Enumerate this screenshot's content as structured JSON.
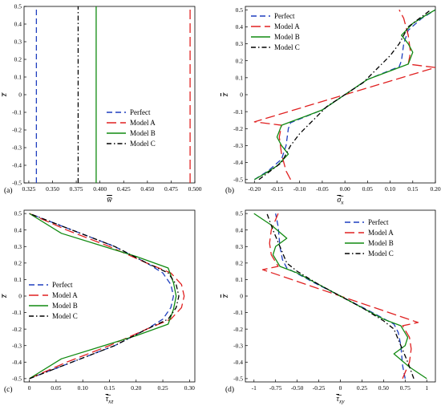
{
  "colors": {
    "Perfect": "#1f3fbf",
    "Model A": "#e02020",
    "Model B": "#108a10",
    "Model C": "#000000"
  },
  "chart_data": [
    {
      "panel": "(a)",
      "type": "line",
      "xlabel": "w̅",
      "ylabel": "z̅",
      "xlim": [
        0.32,
        0.5
      ],
      "ylim": [
        -0.5,
        0.5
      ],
      "xticks": [
        "0.325",
        "0.350",
        "0.375",
        "0.400",
        "0.425",
        "0.450",
        "0.475",
        "0.500"
      ],
      "xtick_values": [
        0.325,
        0.35,
        0.375,
        0.4,
        0.425,
        0.45,
        0.475,
        0.5
      ],
      "yticks": [
        "-0.5",
        "-0.4",
        "-0.3",
        "-0.2",
        "-0.1",
        "0",
        "0.1",
        "0.2",
        "0.3",
        "0.4",
        "0.5"
      ],
      "ytick_values": [
        -0.5,
        -0.4,
        -0.3,
        -0.2,
        -0.1,
        0,
        0.1,
        0.2,
        0.3,
        0.4,
        0.5
      ],
      "legend": "lower-right",
      "series": [
        {
          "name": "Perfect",
          "x": [
            0.333,
            0.333
          ],
          "y": [
            -0.5,
            0.5
          ]
        },
        {
          "name": "Model A",
          "x": [
            0.495,
            0.495
          ],
          "y": [
            -0.5,
            0.5
          ]
        },
        {
          "name": "Model B",
          "x": [
            0.396,
            0.396
          ],
          "y": [
            -0.5,
            0.5
          ]
        },
        {
          "name": "Model C",
          "x": [
            0.377,
            0.377
          ],
          "y": [
            -0.5,
            0.5
          ]
        }
      ]
    },
    {
      "panel": "(b)",
      "type": "line",
      "xlabel": "σ̅x",
      "ylabel": "z̅",
      "xlim": [
        -0.22,
        0.2
      ],
      "ylim": [
        -0.52,
        0.52
      ],
      "xticks": [
        "-0.20",
        "-0.15",
        "-0.10",
        "-0.05",
        "0.00",
        "0.05",
        "0.10",
        "0.15",
        "0.20"
      ],
      "xtick_values": [
        -0.2,
        -0.15,
        -0.1,
        -0.05,
        0,
        0.05,
        0.1,
        0.15,
        0.2
      ],
      "yticks": [
        "-0.5",
        "-0.4",
        "-0.3",
        "-0.2",
        "-0.1",
        "0",
        "0.1",
        "0.2",
        "0.3",
        "0.4",
        "0.5"
      ],
      "ytick_values": [
        -0.5,
        -0.4,
        -0.3,
        -0.2,
        -0.1,
        0,
        0.1,
        0.2,
        0.3,
        0.4,
        0.5
      ],
      "legend": "top-left",
      "series": [
        {
          "name": "Perfect",
          "x": [
            -0.2,
            -0.17,
            -0.14,
            -0.13,
            -0.125,
            -0.12,
            -0.05,
            0,
            0.05,
            0.12,
            0.125,
            0.13,
            0.14,
            0.17,
            0.2
          ],
          "y": [
            -0.5,
            -0.45,
            -0.38,
            -0.3,
            -0.2,
            -0.165,
            -0.09,
            0,
            0.09,
            0.165,
            0.2,
            0.3,
            0.38,
            0.45,
            0.5
          ]
        },
        {
          "name": "Model A",
          "x": [
            -0.12,
            -0.13,
            -0.14,
            -0.145,
            -0.14,
            -0.2,
            0,
            0.2,
            0.14,
            0.145,
            0.14,
            0.13,
            0.12
          ],
          "y": [
            -0.5,
            -0.45,
            -0.35,
            -0.25,
            -0.18,
            -0.16,
            0,
            0.16,
            0.18,
            0.25,
            0.35,
            0.45,
            0.5
          ]
        },
        {
          "name": "Model B",
          "x": [
            -0.2,
            -0.18,
            -0.15,
            -0.125,
            -0.14,
            -0.15,
            -0.14,
            -0.12,
            -0.05,
            0,
            0.05,
            0.12,
            0.14,
            0.15,
            0.14,
            0.125,
            0.15,
            0.18,
            0.2
          ],
          "y": [
            -0.5,
            -0.47,
            -0.42,
            -0.35,
            -0.3,
            -0.25,
            -0.18,
            -0.16,
            -0.09,
            0,
            0.09,
            0.16,
            0.18,
            0.25,
            0.3,
            0.35,
            0.42,
            0.47,
            0.5
          ]
        },
        {
          "name": "Model C",
          "x": [
            -0.19,
            -0.14,
            -0.12,
            -0.1,
            -0.07,
            -0.04,
            0,
            0.04,
            0.07,
            0.1,
            0.12,
            0.14,
            0.19
          ],
          "y": [
            -0.5,
            -0.4,
            -0.3,
            -0.23,
            -0.15,
            -0.07,
            0,
            0.07,
            0.15,
            0.23,
            0.3,
            0.4,
            0.5
          ]
        }
      ]
    },
    {
      "panel": "(c)",
      "type": "line",
      "xlabel": "τ̅xz",
      "ylabel": "z̅",
      "xlim": [
        -0.01,
        0.31
      ],
      "ylim": [
        -0.52,
        0.52
      ],
      "xticks": [
        "0",
        "0.05",
        "0.10",
        "0.15",
        "0.20",
        "0.25",
        "0.30"
      ],
      "xtick_values": [
        0,
        0.05,
        0.1,
        0.15,
        0.2,
        0.25,
        0.3
      ],
      "yticks": [
        "-0.5",
        "-0.4",
        "-0.3",
        "-0.2",
        "-0.1",
        "0",
        "0.1",
        "0.2",
        "0.3",
        "0.4",
        "0.5"
      ],
      "ytick_values": [
        -0.5,
        -0.4,
        -0.3,
        -0.2,
        -0.1,
        0,
        0.1,
        0.2,
        0.3,
        0.4,
        0.5
      ],
      "legend": "left",
      "series": [
        {
          "name": "Perfect",
          "x": [
            0,
            0.08,
            0.16,
            0.22,
            0.25,
            0.265,
            0.27,
            0.265,
            0.25,
            0.22,
            0.16,
            0.08,
            0
          ],
          "y": [
            -0.5,
            -0.4,
            -0.3,
            -0.2,
            -0.14,
            -0.07,
            0,
            0.07,
            0.14,
            0.2,
            0.3,
            0.4,
            0.5
          ]
        },
        {
          "name": "Model A",
          "x": [
            0,
            0.07,
            0.15,
            0.22,
            0.265,
            0.285,
            0.29,
            0.285,
            0.265,
            0.22,
            0.15,
            0.07,
            0
          ],
          "y": [
            -0.5,
            -0.4,
            -0.3,
            -0.2,
            -0.14,
            -0.07,
            0,
            0.07,
            0.14,
            0.2,
            0.3,
            0.4,
            0.5
          ]
        },
        {
          "name": "Model B",
          "x": [
            0,
            0.06,
            0.14,
            0.2,
            0.26,
            0.27,
            0.275,
            0.27,
            0.26,
            0.2,
            0.14,
            0.06,
            0
          ],
          "y": [
            -0.5,
            -0.38,
            -0.3,
            -0.24,
            -0.17,
            -0.08,
            0,
            0.08,
            0.17,
            0.24,
            0.3,
            0.38,
            0.5
          ]
        },
        {
          "name": "Model C",
          "x": [
            0,
            0.08,
            0.16,
            0.22,
            0.26,
            0.275,
            0.28,
            0.275,
            0.26,
            0.22,
            0.16,
            0.08,
            0
          ],
          "y": [
            -0.5,
            -0.4,
            -0.3,
            -0.2,
            -0.14,
            -0.07,
            0,
            0.07,
            0.14,
            0.2,
            0.3,
            0.4,
            0.5
          ]
        }
      ]
    },
    {
      "panel": "(d)",
      "type": "line",
      "xlabel": "τ̅xy",
      "ylabel": "z̅",
      "xlim": [
        -1.1,
        1.1
      ],
      "ylim": [
        -0.52,
        0.52
      ],
      "xticks": [
        "-1",
        "-0.75",
        "-0.50",
        "-0.25",
        "0",
        "0.25",
        "0.50",
        "0.75",
        "1"
      ],
      "xtick_values": [
        -1,
        -0.75,
        -0.5,
        -0.25,
        0,
        0.25,
        0.5,
        0.75,
        1
      ],
      "yticks": [
        "-0.5",
        "-0.4",
        "-0.3",
        "-0.2",
        "-0.1",
        "0",
        "0.1",
        "0.2",
        "0.3",
        "0.4",
        "0.5"
      ],
      "ytick_values": [
        -0.5,
        -0.4,
        -0.3,
        -0.2,
        -0.1,
        0,
        0.1,
        0.2,
        0.3,
        0.4,
        0.5
      ],
      "legend": "top-right",
      "series": [
        {
          "name": "Perfect",
          "x": [
            0.75,
            0.72,
            0.7,
            0.67,
            0.62,
            0.3,
            0,
            -0.3,
            -0.62,
            -0.67,
            -0.7,
            -0.72,
            -0.75
          ],
          "y": [
            -0.5,
            -0.42,
            -0.3,
            -0.22,
            -0.17,
            -0.08,
            0,
            0.08,
            0.17,
            0.22,
            0.3,
            0.42,
            0.5
          ]
        },
        {
          "name": "Model A",
          "x": [
            0.72,
            0.8,
            0.82,
            0.8,
            0.72,
            0.9,
            0,
            -0.9,
            -0.72,
            -0.8,
            -0.82,
            -0.8,
            -0.72
          ],
          "y": [
            -0.5,
            -0.4,
            -0.32,
            -0.25,
            -0.18,
            -0.16,
            0,
            0.16,
            0.18,
            0.25,
            0.32,
            0.4,
            0.5
          ]
        },
        {
          "name": "Model B",
          "x": [
            1.0,
            0.8,
            0.62,
            0.75,
            0.78,
            0.7,
            0.5,
            0.25,
            0,
            -0.25,
            -0.5,
            -0.7,
            -0.78,
            -0.75,
            -0.62,
            -0.8,
            -1.0
          ],
          "y": [
            -0.5,
            -0.43,
            -0.35,
            -0.3,
            -0.25,
            -0.18,
            -0.14,
            -0.07,
            0,
            0.07,
            0.14,
            0.18,
            0.25,
            0.3,
            0.35,
            0.43,
            0.5
          ]
        },
        {
          "name": "Model C",
          "x": [
            0.85,
            0.78,
            0.7,
            0.62,
            0.5,
            0.25,
            0,
            -0.25,
            -0.5,
            -0.62,
            -0.7,
            -0.78,
            -0.85
          ],
          "y": [
            -0.5,
            -0.4,
            -0.3,
            -0.2,
            -0.15,
            -0.07,
            0,
            0.07,
            0.15,
            0.2,
            0.3,
            0.4,
            0.5
          ]
        }
      ]
    }
  ]
}
